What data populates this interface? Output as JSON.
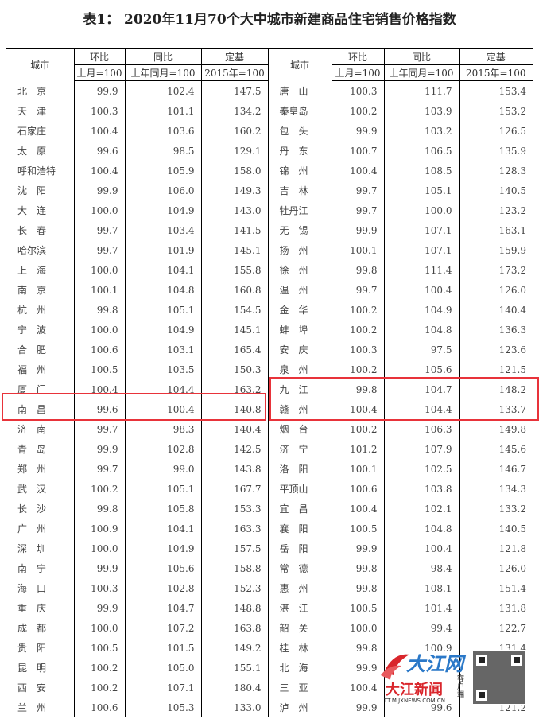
{
  "title": "表1： 2020年11月70个大中城市新建商品住宅销售价格指数",
  "headers": {
    "city": "城市",
    "mom": "环比",
    "yoy": "同比",
    "base": "定基",
    "mom_sub": "上月=100",
    "yoy_sub": "上年同月=100",
    "base_sub": "2015年=100"
  },
  "rows": [
    [
      [
        "北　京",
        "99.9",
        "102.4",
        "147.5"
      ],
      [
        "唐　山",
        "100.3",
        "111.7",
        "153.4"
      ]
    ],
    [
      [
        "天　津",
        "100.3",
        "101.1",
        "134.2"
      ],
      [
        "秦皇岛",
        "100.2",
        "103.9",
        "153.2"
      ]
    ],
    [
      [
        "石家庄",
        "100.4",
        "103.6",
        "160.2"
      ],
      [
        "包　头",
        "99.9",
        "103.2",
        "126.5"
      ]
    ],
    [
      [
        "太　原",
        "99.6",
        "98.5",
        "129.1"
      ],
      [
        "丹　东",
        "100.7",
        "106.5",
        "135.9"
      ]
    ],
    [
      [
        "呼和浩特",
        "100.4",
        "105.9",
        "158.0"
      ],
      [
        "锦　州",
        "100.4",
        "108.5",
        "128.3"
      ]
    ],
    [
      [
        "沈　阳",
        "99.9",
        "106.0",
        "149.3"
      ],
      [
        "吉　林",
        "99.7",
        "105.1",
        "140.5"
      ]
    ],
    [
      [
        "大　连",
        "100.0",
        "104.9",
        "143.0"
      ],
      [
        "牡丹江",
        "99.7",
        "100.0",
        "123.2"
      ]
    ],
    [
      [
        "长　春",
        "99.7",
        "103.4",
        "141.5"
      ],
      [
        "无　锡",
        "99.9",
        "107.1",
        "163.1"
      ]
    ],
    [
      [
        "哈尔滨",
        "99.7",
        "101.9",
        "145.1"
      ],
      [
        "扬　州",
        "100.1",
        "107.1",
        "159.9"
      ]
    ],
    [
      [
        "上　海",
        "100.0",
        "104.1",
        "155.8"
      ],
      [
        "徐　州",
        "99.8",
        "111.4",
        "173.2"
      ]
    ],
    [
      [
        "南　京",
        "100.1",
        "104.8",
        "160.8"
      ],
      [
        "温　州",
        "99.7",
        "100.4",
        "126.0"
      ]
    ],
    [
      [
        "杭　州",
        "99.8",
        "105.1",
        "154.5"
      ],
      [
        "金　华",
        "100.2",
        "104.9",
        "140.4"
      ]
    ],
    [
      [
        "宁　波",
        "100.0",
        "104.9",
        "145.1"
      ],
      [
        "蚌　埠",
        "100.2",
        "104.8",
        "136.3"
      ]
    ],
    [
      [
        "合　肥",
        "100.6",
        "103.1",
        "165.4"
      ],
      [
        "安　庆",
        "100.3",
        "97.5",
        "123.6"
      ]
    ],
    [
      [
        "福　州",
        "100.5",
        "103.5",
        "150.3"
      ],
      [
        "泉　州",
        "100.2",
        "105.6",
        "121.5"
      ]
    ],
    [
      [
        "厦　门",
        "100.4",
        "104.4",
        "163.2"
      ],
      [
        "九　江",
        "99.8",
        "104.7",
        "148.2"
      ]
    ],
    [
      [
        "南　昌",
        "99.6",
        "100.4",
        "140.8"
      ],
      [
        "赣　州",
        "100.4",
        "104.4",
        "133.7"
      ]
    ],
    [
      [
        "济　南",
        "99.7",
        "98.3",
        "140.4"
      ],
      [
        "烟　台",
        "100.2",
        "106.3",
        "149.8"
      ]
    ],
    [
      [
        "青　岛",
        "99.9",
        "102.8",
        "142.5"
      ],
      [
        "济　宁",
        "101.2",
        "107.9",
        "145.6"
      ]
    ],
    [
      [
        "郑　州",
        "99.7",
        "99.0",
        "143.8"
      ],
      [
        "洛　阳",
        "100.1",
        "102.5",
        "146.7"
      ]
    ],
    [
      [
        "武　汉",
        "100.2",
        "105.1",
        "167.7"
      ],
      [
        "平顶山",
        "100.6",
        "103.8",
        "134.3"
      ]
    ],
    [
      [
        "长　沙",
        "99.8",
        "105.8",
        "153.3"
      ],
      [
        "宜　昌",
        "100.4",
        "102.1",
        "133.2"
      ]
    ],
    [
      [
        "广　州",
        "100.9",
        "104.1",
        "163.3"
      ],
      [
        "襄　阳",
        "100.5",
        "104.8",
        "140.5"
      ]
    ],
    [
      [
        "深　圳",
        "100.0",
        "104.9",
        "157.5"
      ],
      [
        "岳　阳",
        "99.9",
        "100.4",
        "121.8"
      ]
    ],
    [
      [
        "南　宁",
        "99.9",
        "105.6",
        "158.8"
      ],
      [
        "常　德",
        "99.8",
        "98.4",
        "126.0"
      ]
    ],
    [
      [
        "海　口",
        "100.3",
        "102.8",
        "152.3"
      ],
      [
        "惠　州",
        "99.8",
        "108.1",
        "151.4"
      ]
    ],
    [
      [
        "重　庆",
        "99.9",
        "104.7",
        "148.8"
      ],
      [
        "湛　江",
        "100.5",
        "101.4",
        "131.8"
      ]
    ],
    [
      [
        "成　都",
        "100.0",
        "107.2",
        "163.8"
      ],
      [
        "韶　关",
        "100.0",
        "99.4",
        "122.7"
      ]
    ],
    [
      [
        "贵　阳",
        "100.5",
        "101.5",
        "149.2"
      ],
      [
        "桂　林",
        "99.8",
        "100.9",
        "131.4"
      ]
    ],
    [
      [
        "昆　明",
        "100.2",
        "105.0",
        "155.1"
      ],
      [
        "北　海",
        "99.9",
        "",
        ""
      ]
    ],
    [
      [
        "西　安",
        "100.2",
        "107.1",
        "180.4"
      ],
      [
        "三　亚",
        "100.4",
        "",
        ""
      ]
    ],
    [
      [
        "兰　州",
        "100.6",
        "105.3",
        "133.0"
      ],
      [
        "泸　州",
        "99.9",
        "99.6",
        "121.2"
      ]
    ]
  ],
  "watermark": {
    "brand": "大江网",
    "app": "大江新闻",
    "app_tag": "客户端",
    "url": "TT.M.JXNEWS.COM.CN"
  },
  "colors": {
    "highlight": "#e8333a",
    "brand_red": "#d9262c",
    "brand_blue": "#2a78c8"
  }
}
